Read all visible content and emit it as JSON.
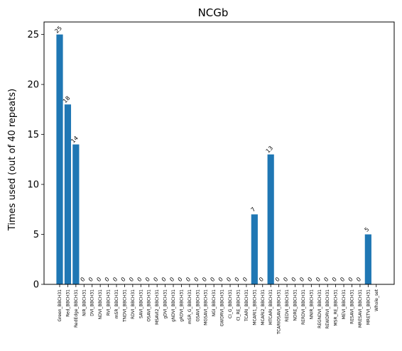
{
  "chart_data": {
    "type": "bar",
    "title": "NCGb",
    "xlabel": "",
    "ylabel": "Times used (out of 40 repeats)",
    "ylim": [
      0,
      26.25
    ],
    "yticks": [
      0,
      5,
      10,
      15,
      20,
      25
    ],
    "grid": false,
    "bar_color": "#1f77b4",
    "categories": [
      "Green_BBCH31",
      "Red_BBCH31",
      "RedEdge_BBCH31",
      "NIR_BBCH31",
      "DVI_BBCH31",
      "NDVI_BBCH31",
      "RVI_BBCH31",
      "mSR_BBCH31",
      "TNDVI_BBCH31",
      "RDVI_BBCH31",
      "SAVI_BBCH31",
      "OSAVI_BBCH31",
      "MSAVI2_BBCH31",
      "gDVI_BBCH31",
      "gNDVI_BBCH31",
      "gRDVI_BBCH31",
      "mSR_G_BBCH31",
      "GSAVI_BBCH31",
      "MGSAVI_BBCH31",
      "NGI_BBCH31",
      "GWDRVI_BBCH31",
      "CI_G_BBCH31",
      "CI_RE_BBCH31",
      "TCARI_BBCH31",
      "MCARI1_BBCH31",
      "MCARI2_BBCH31",
      "MTCARI_BBCH31",
      "TCARIOSAVI_BBCH31",
      "REDVI_BBCH31",
      "NDRE_BBCH31",
      "RERDVI_BBCH31",
      "NNIR_BBCH31",
      "REGNDVI_BBCH31",
      "REWDRVI_BBCH31",
      "MSR_RE_BBCH31",
      "MEVI_BBCH31",
      "RESAVI_BBCH31",
      "MRESAVI_BBCH31",
      "MRETVI_BBCH31",
      "Whole_set"
    ],
    "values": [
      25,
      18,
      14,
      0,
      0,
      0,
      0,
      0,
      0,
      0,
      0,
      0,
      0,
      0,
      0,
      0,
      0,
      0,
      0,
      0,
      0,
      0,
      0,
      0,
      7,
      0,
      13,
      0,
      0,
      0,
      0,
      0,
      0,
      0,
      0,
      0,
      0,
      0,
      5,
      null
    ],
    "data_labels": [
      "25",
      "18",
      "14",
      "0",
      "0",
      "0",
      "0",
      "0",
      "0",
      "0",
      "0",
      "0",
      "0",
      "0",
      "0",
      "0",
      "0",
      "0",
      "0",
      "0",
      "0",
      "0",
      "0",
      "0",
      "7",
      "0",
      "13",
      "0",
      "0",
      "0",
      "0",
      "0",
      "0",
      "0",
      "0",
      "0",
      "0",
      "0",
      "5",
      ""
    ]
  }
}
